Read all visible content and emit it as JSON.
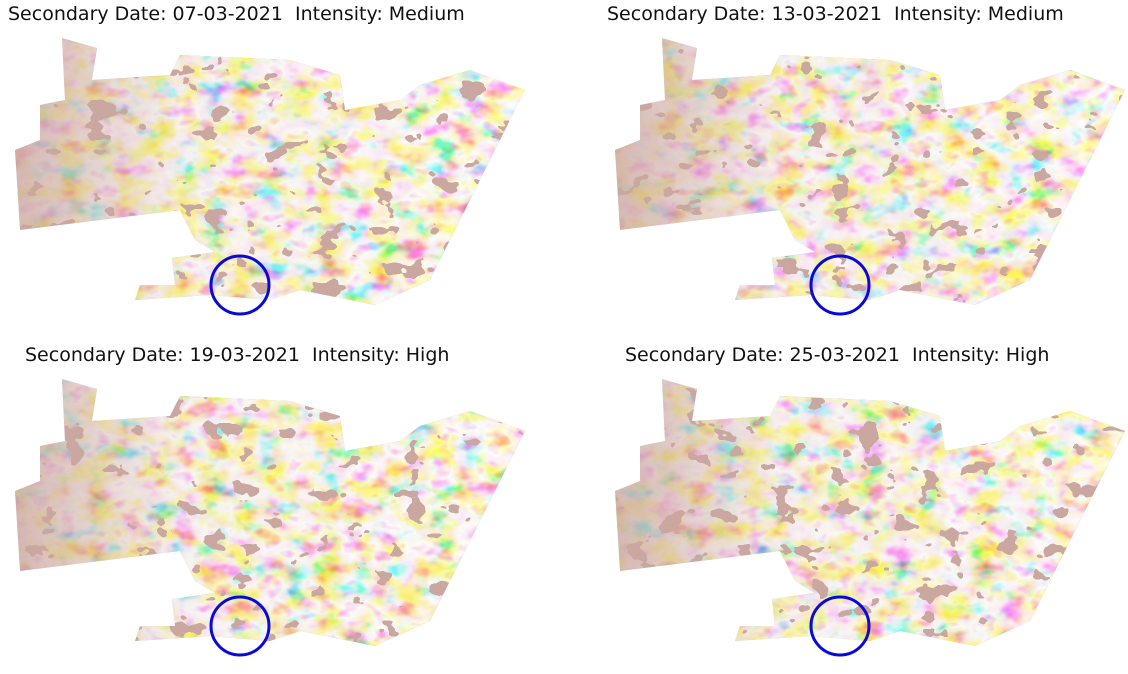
{
  "panels": [
    {
      "title": "Secondary Date: 07-03-2021  Intensity: Medium"
    },
    {
      "title": "Secondary Date: 13-03-2021  Intensity: Medium"
    },
    {
      "title": "Secondary Date: 19-03-2021  Intensity: High"
    },
    {
      "title": "Secondary Date: 25-03-2021  Intensity: High"
    }
  ]
}
